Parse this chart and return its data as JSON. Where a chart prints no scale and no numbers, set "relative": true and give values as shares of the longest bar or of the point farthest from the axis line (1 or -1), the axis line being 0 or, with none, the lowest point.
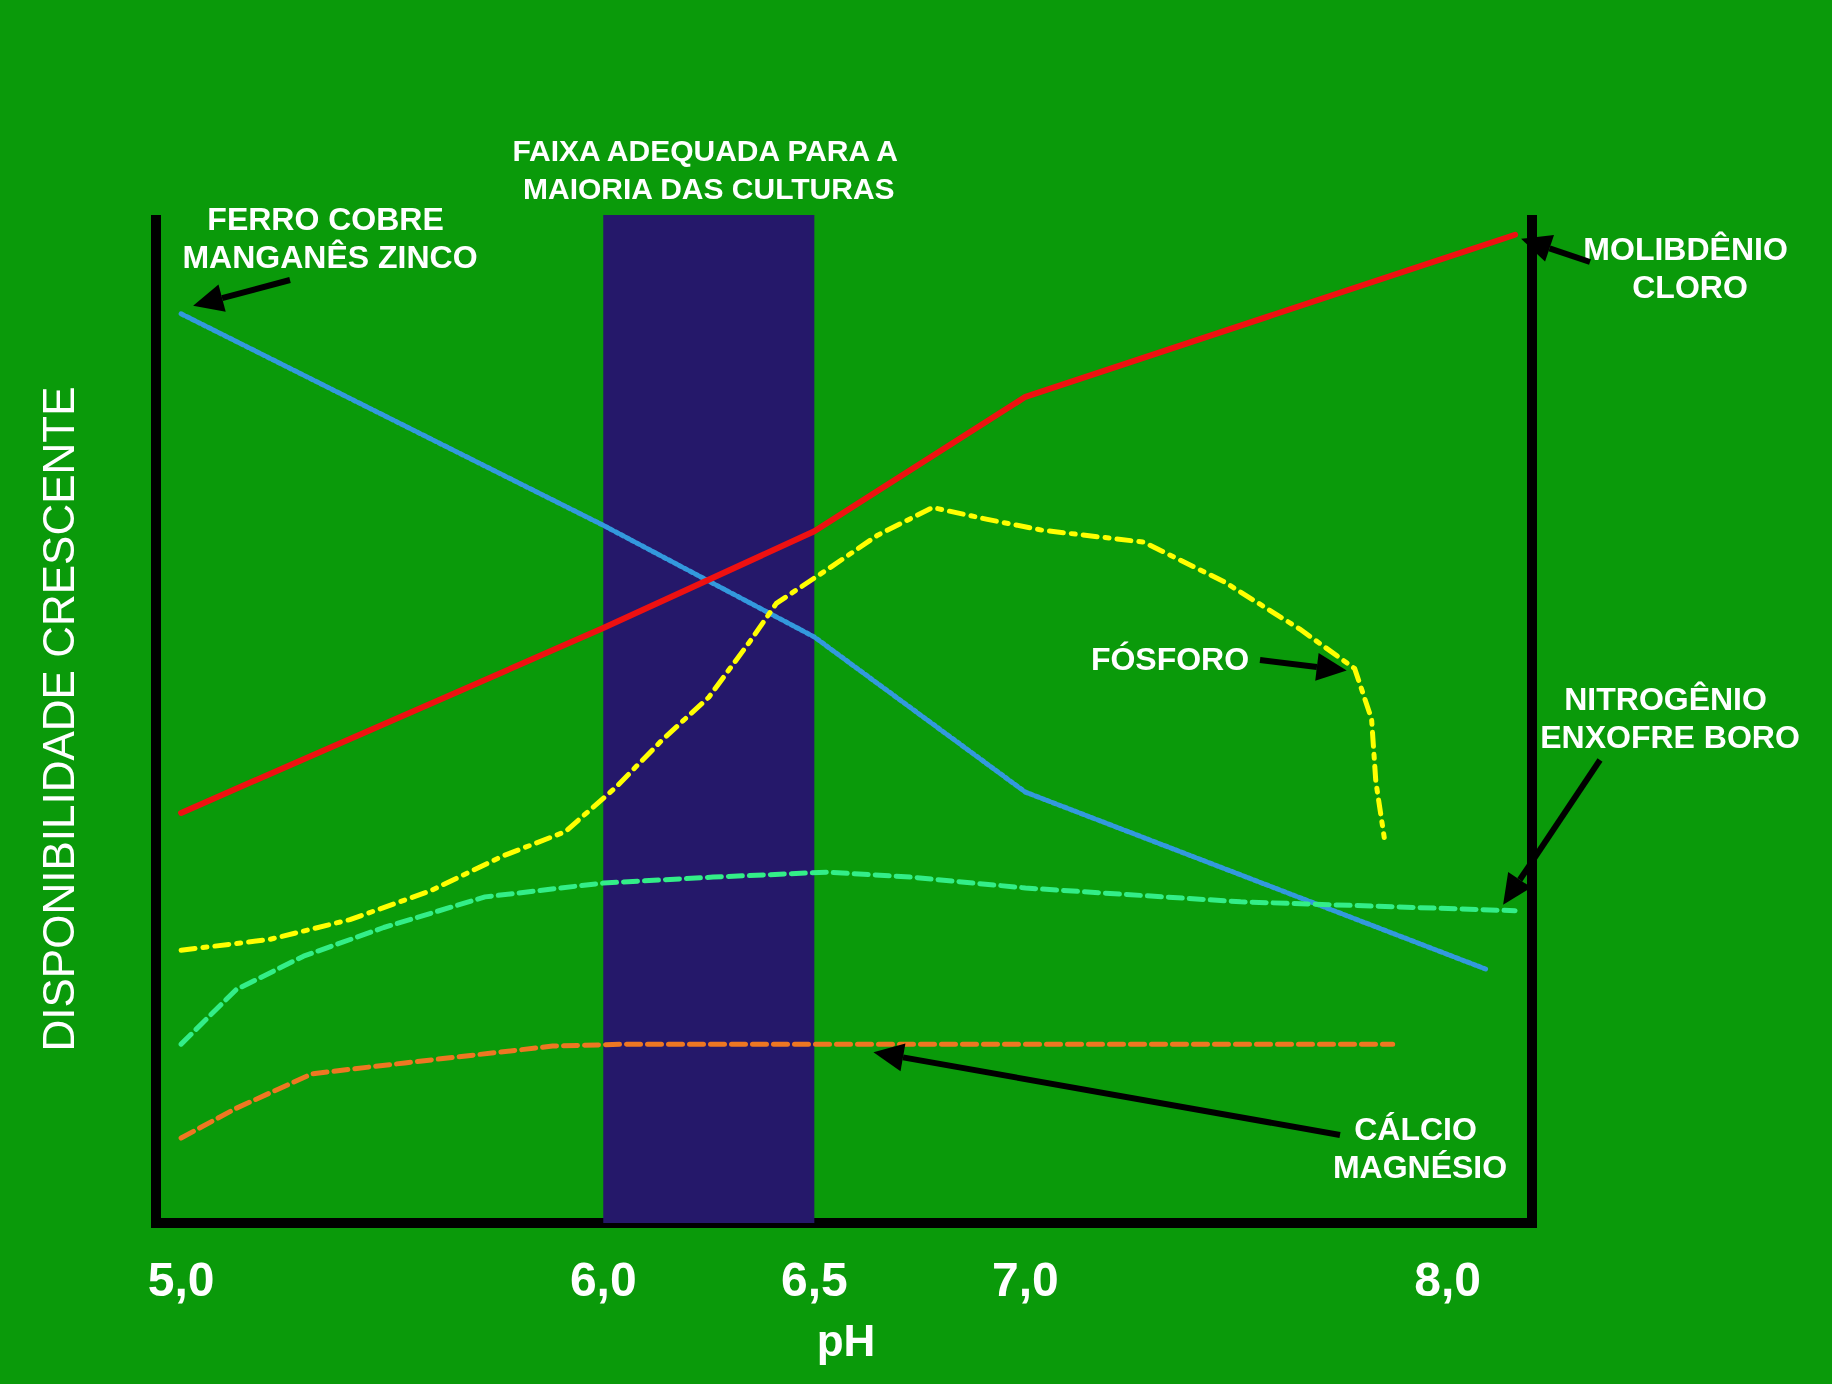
{
  "chart_data": {
    "type": "line",
    "relative": true,
    "xlabel": "pH",
    "ylabel": "DISPONIBILIDADE CRESCENTE",
    "xlim": [
      4.95,
      8.2
    ],
    "xticks": [
      {
        "value": 5,
        "label": "5,0"
      },
      {
        "value": 6,
        "label": "6,0"
      },
      {
        "value": 6.5,
        "label": "6,5"
      },
      {
        "value": 7,
        "label": "7,0"
      },
      {
        "value": 8,
        "label": "8,0"
      }
    ],
    "grid": false,
    "legend": false,
    "marker": "none",
    "bands": [
      {
        "axis": "x",
        "from": 6.0,
        "to": 6.5,
        "label": "FAIXA ADEQUADA PARA A MAIORIA DAS CULTURAS",
        "color": "#25186a"
      }
    ],
    "series": [
      {
        "name": "FERRO COBRE MANGANÊS ZINCO",
        "color": "#3399dd",
        "line_style": "dotted",
        "x": [
          5.0,
          6.0,
          6.5,
          7.0,
          8.09
        ],
        "values": [
          0.92,
          0.706,
          0.593,
          0.436,
          0.257
        ]
      },
      {
        "name": "MOLIBDÊNIO CLORO",
        "color": "#ee1111",
        "line_style": "solid",
        "x": [
          5.0,
          6.0,
          6.5,
          7.0,
          8.16
        ],
        "values": [
          0.415,
          0.602,
          0.7,
          0.836,
          1
        ]
      },
      {
        "name": "FÓSFORO",
        "color": "#ffff00",
        "line_style": "dashed",
        "x": [
          5.0,
          5.21,
          5.4,
          5.59,
          5.76,
          5.91,
          6.03,
          6.14,
          6.25,
          6.35,
          6.41,
          6.54,
          6.65,
          6.78,
          6.91,
          7.04,
          7.28,
          7.47,
          7.65,
          7.78,
          7.82,
          7.83,
          7.85
        ],
        "values": [
          0.276,
          0.287,
          0.307,
          0.336,
          0.371,
          0.396,
          0.441,
          0.489,
          0.532,
          0.59,
          0.627,
          0.664,
          0.696,
          0.724,
          0.712,
          0.701,
          0.689,
          0.649,
          0.601,
          0.561,
          0.51,
          0.447,
          0.39
        ]
      },
      {
        "name": "NITROGÊNIO ENXOFRE BORO",
        "color": "#33ee88",
        "line_style": "dashed",
        "x": [
          5.0,
          5.13,
          5.29,
          5.48,
          5.72,
          6.0,
          6.26,
          6.53,
          6.73,
          7.0,
          7.51,
          8.16
        ],
        "values": [
          0.181,
          0.236,
          0.27,
          0.299,
          0.33,
          0.344,
          0.35,
          0.355,
          0.35,
          0.339,
          0.325,
          0.316
        ]
      },
      {
        "name": "CÁLCIO MAGNÉSIO",
        "color": "#ee7722",
        "line_style": "dashed",
        "x": [
          5.0,
          5.13,
          5.31,
          5.53,
          5.88,
          6.06,
          6.64,
          7.87
        ],
        "values": [
          0.086,
          0.116,
          0.151,
          0.162,
          0.179,
          0.181,
          0.181,
          0.181
        ]
      }
    ]
  }
}
